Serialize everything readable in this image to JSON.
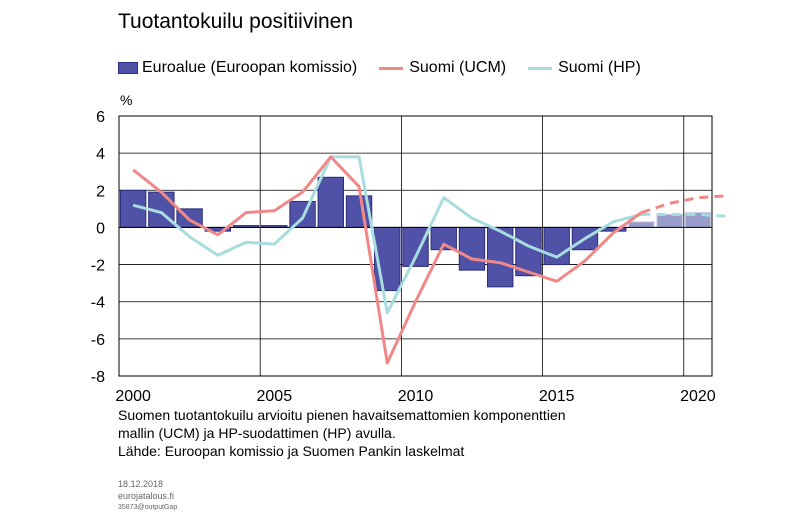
{
  "chart_data": {
    "type": "bar",
    "title": "Tuotantokuilu positiivinen",
    "ylabel": "%",
    "xlabel": "",
    "ylim": [
      -8,
      6
    ],
    "yticks": [
      6,
      4,
      2,
      0,
      -2,
      -4,
      -6,
      -8
    ],
    "xlim": [
      1999.5,
      2020.5
    ],
    "xticks": [
      2000,
      2005,
      2010,
      2015,
      2020
    ],
    "grid": true,
    "legend_position": "top",
    "series": [
      {
        "name": "Euroalue (Euroopan komissio)",
        "type": "bar",
        "color": "#5052a8",
        "x": [
          2000,
          2001,
          2002,
          2003,
          2004,
          2005,
          2006,
          2007,
          2008,
          2009,
          2010,
          2011,
          2012,
          2013,
          2014,
          2015,
          2016,
          2017,
          2018,
          2019,
          2020
        ],
        "values": [
          2.0,
          1.9,
          1.0,
          -0.2,
          0.1,
          0.1,
          1.4,
          2.7,
          1.7,
          -3.4,
          -2.1,
          -1.2,
          -2.3,
          -3.2,
          -2.6,
          -2.0,
          -1.2,
          -0.2,
          0.3,
          0.7,
          0.8
        ],
        "forecast_from": 2018
      },
      {
        "name": "Suomi (UCM)",
        "type": "line",
        "color": "#f08888",
        "x": [
          2000,
          2001,
          2002,
          2003,
          2004,
          2005,
          2006,
          2007,
          2008,
          2009,
          2010,
          2011,
          2012,
          2013,
          2014,
          2015,
          2016,
          2017,
          2018,
          2019,
          2020,
          2021
        ],
        "values": [
          3.1,
          1.9,
          0.4,
          -0.4,
          0.8,
          0.9,
          1.9,
          3.8,
          2.2,
          -7.3,
          -4.0,
          -0.9,
          -1.7,
          -1.9,
          -2.4,
          -2.9,
          -1.8,
          -0.3,
          0.8,
          1.3,
          1.6,
          1.7
        ],
        "forecast_from": 2018
      },
      {
        "name": "Suomi (HP)",
        "type": "line",
        "color": "#a8dde0",
        "x": [
          2000,
          2001,
          2002,
          2003,
          2004,
          2005,
          2006,
          2007,
          2008,
          2009,
          2010,
          2011,
          2012,
          2013,
          2014,
          2015,
          2016,
          2017,
          2018,
          2019,
          2020,
          2021
        ],
        "values": [
          1.2,
          0.8,
          -0.5,
          -1.5,
          -0.8,
          -0.9,
          0.5,
          3.8,
          3.8,
          -4.6,
          -1.6,
          1.6,
          0.5,
          -0.2,
          -1.0,
          -1.6,
          -0.6,
          0.3,
          0.7,
          0.7,
          0.7,
          0.6
        ],
        "forecast_from": 2018
      }
    ]
  },
  "legend": {
    "bar_label": "Euroalue (Euroopan komissio)",
    "ucm_label": "Suomi (UCM)",
    "hp_label": "Suomi (HP)"
  },
  "notes": {
    "line1": "Suomen tuotantokuilu arvioitu pienen havaitsemattomien komponenttien",
    "line2": "mallin (UCM) ja HP-suodattimen (HP) avulla.",
    "line3": "Lähde: Euroopan komissio ja Suomen Pankin laskelmat"
  },
  "footer": {
    "date": "18.12.2018",
    "site": "eurojatalous.fi",
    "code": "35873@outputGap"
  }
}
